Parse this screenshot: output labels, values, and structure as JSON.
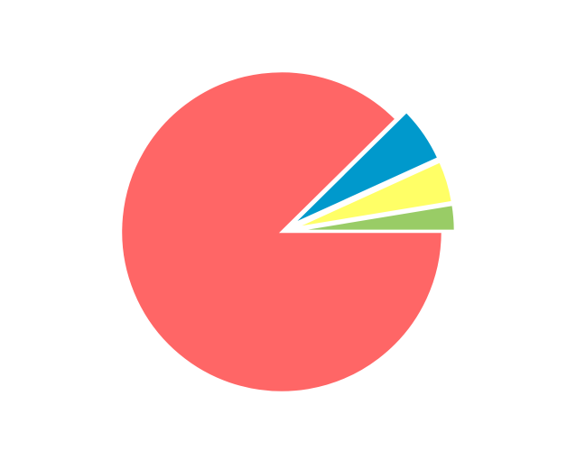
{
  "chart_data": {
    "type": "pie",
    "title": "",
    "slices": [
      {
        "value": 87.6,
        "color": "#FF6666",
        "exploded": false
      },
      {
        "value": 5.6,
        "color": "#0099CC",
        "exploded": true
      },
      {
        "value": 4.2,
        "color": "#FFFF66",
        "exploded": true
      },
      {
        "value": 2.6,
        "color": "#99CC66",
        "exploded": true
      }
    ],
    "start": "3 o'clock",
    "direction": "counterclockwise",
    "legend": "none"
  }
}
